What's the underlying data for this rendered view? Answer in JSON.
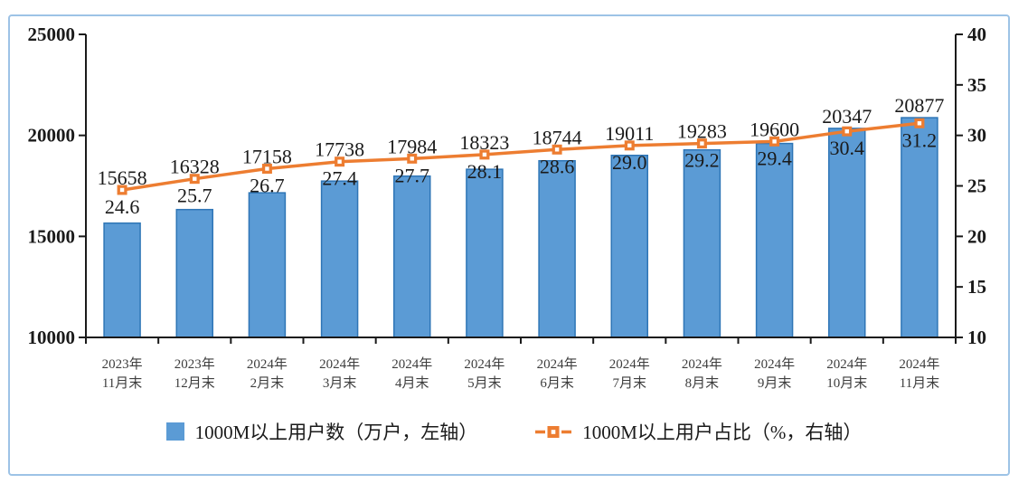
{
  "chart_data": {
    "type": "bar",
    "subtype": "bar+line-combo",
    "categories": [
      [
        "2023年",
        "11月末"
      ],
      [
        "2023年",
        "12月末"
      ],
      [
        "2024年",
        "2月末"
      ],
      [
        "2024年",
        "3月末"
      ],
      [
        "2024年",
        "4月末"
      ],
      [
        "2024年",
        "5月末"
      ],
      [
        "2024年",
        "6月末"
      ],
      [
        "2024年",
        "7月末"
      ],
      [
        "2024年",
        "8月末"
      ],
      [
        "2024年",
        "9月末"
      ],
      [
        "2024年",
        "10月末"
      ],
      [
        "2024年",
        "11月末"
      ]
    ],
    "series": [
      {
        "name": "1000M以上用户数（万户，左轴）",
        "type": "bar",
        "axis": "left",
        "color": "#5B9BD5",
        "border_color": "#2E75B6",
        "values": [
          15658,
          16328,
          17158,
          17738,
          17984,
          18323,
          18744,
          19011,
          19283,
          19600,
          20347,
          20877
        ]
      },
      {
        "name": "1000M以上用户占比（%，右轴）",
        "type": "line",
        "axis": "right",
        "color": "#ED7D31",
        "marker": "square-with-white-center",
        "values": [
          24.6,
          25.7,
          26.7,
          27.4,
          27.7,
          28.1,
          28.6,
          29.0,
          29.2,
          29.4,
          30.4,
          31.2
        ]
      }
    ],
    "left_axis": {
      "min": 10000,
      "max": 25000,
      "ticks": [
        10000,
        15000,
        20000,
        25000
      ]
    },
    "right_axis": {
      "min": 10,
      "max": 40,
      "ticks": [
        10,
        15,
        20,
        25,
        30,
        35,
        40
      ]
    },
    "title": "",
    "xlabel": "",
    "ylabel": "",
    "grid": false,
    "legend_position": "bottom"
  },
  "colors": {
    "panel_border": "#9DC3E6",
    "axis_line": "#1a1a1a",
    "label_text": "#1a1a1a",
    "x_tick_text": "#3d3d3d",
    "background": "#ffffff"
  }
}
